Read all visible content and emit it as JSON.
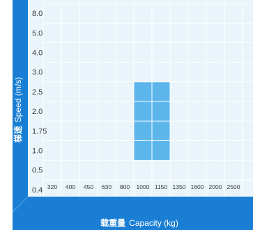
{
  "chart_data": {
    "type": "heatmap",
    "title": "",
    "xlabel": {
      "zh": "载重量",
      "en": "Capacity (kg)"
    },
    "ylabel": {
      "zh": "梯速",
      "en": "Speed (m/s)"
    },
    "x_categories": [
      "320",
      "400",
      "450",
      "630",
      "800",
      "1000",
      "1150",
      "1350",
      "1600",
      "2000",
      "2500"
    ],
    "y_categories": [
      "0.4",
      "0.5",
      "1.0",
      "1.75",
      "2.0",
      "2.5",
      "3.0",
      "4.0",
      "5.0",
      "8.0"
    ],
    "available_cells": [
      {
        "capacity": "1000",
        "speed": "1.0"
      },
      {
        "capacity": "1000",
        "speed": "1.75"
      },
      {
        "capacity": "1000",
        "speed": "2.0"
      },
      {
        "capacity": "1000",
        "speed": "2.5"
      },
      {
        "capacity": "1150",
        "speed": "1.0"
      },
      {
        "capacity": "1150",
        "speed": "1.75"
      },
      {
        "capacity": "1150",
        "speed": "2.0"
      },
      {
        "capacity": "1150",
        "speed": "2.5"
      }
    ],
    "colors": {
      "axis_band": "#1a7fd4",
      "plot_bg": "#eaf4fb",
      "grid": "#ffffff",
      "cell_fill": "#5cb6ec",
      "tick_text": "#3a3a3a",
      "axis_text": "#ffffff"
    },
    "grid": true
  }
}
